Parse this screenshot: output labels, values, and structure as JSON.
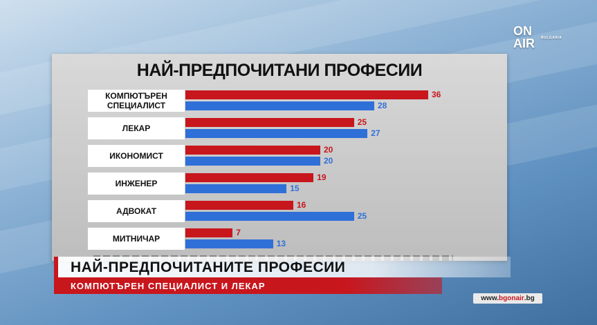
{
  "logo": {
    "main": "ON AIR",
    "line1": "ON",
    "line2": "AIR",
    "sub": "BULGARIA"
  },
  "chart_data": {
    "type": "bar",
    "orientation": "horizontal",
    "title": "НАЙ-ПРЕДПОЧИТАНИ ПРОФЕСИИ",
    "categories": [
      "КОМПЮТЪРЕН СПЕЦИАЛИСТ",
      "ЛЕКАР",
      "ИКОНОМИСТ",
      "ИНЖЕНЕР",
      "АДВОКАТ",
      "МИТНИЧАР"
    ],
    "series": [
      {
        "color": "#c8161d",
        "values": [
          36,
          25,
          20,
          19,
          16,
          7
        ]
      },
      {
        "color": "#2f6fd8",
        "values": [
          28,
          27,
          20,
          15,
          25,
          13
        ]
      }
    ],
    "xlim": [
      0,
      40
    ]
  },
  "lower_third": {
    "headline": "НАЙ-ПРЕДПОЧИТАНИТЕ ПРОФЕСИИ",
    "subline": "КОМПЮТЪРЕН СПЕЦИАЛИСТ И ЛЕКАР"
  },
  "footer": {
    "url_prefix": "www.",
    "url_brand": "bgonair",
    "url_dot": ".",
    "url_tld": "bg"
  },
  "colors": {
    "accent_red": "#c8161d",
    "accent_blue": "#2f6fd8"
  }
}
